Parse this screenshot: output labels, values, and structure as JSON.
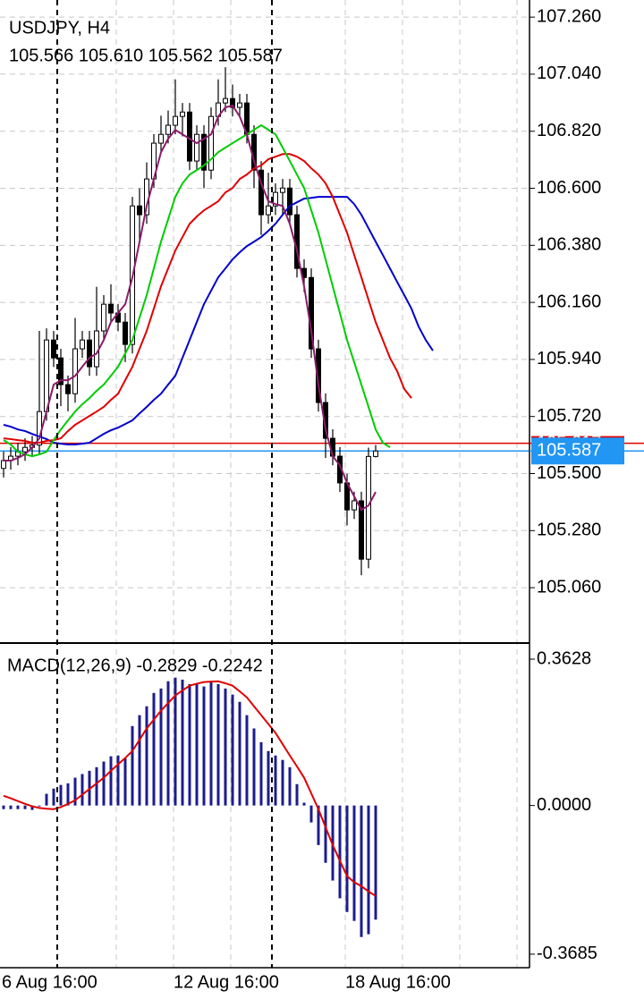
{
  "chart_data": [
    {
      "type": "candlestick",
      "title": "USDJPY, H4",
      "subtitle": "105.566 105.610 105.562 105.587",
      "categories": [
        "6 Aug 16:00",
        null,
        null,
        null,
        null,
        null,
        null,
        null,
        null,
        null,
        null,
        null,
        null,
        null,
        null,
        null,
        null,
        null,
        null,
        null,
        null,
        null,
        null,
        null,
        "12 Aug 16:00",
        null,
        null,
        null,
        null,
        null,
        null,
        null,
        null,
        null,
        null,
        null,
        null,
        null,
        null,
        null,
        null,
        null,
        null,
        null,
        null,
        null,
        null,
        null,
        "18 Aug 16:00",
        null,
        null,
        null,
        null,
        null,
        null,
        null,
        null,
        null,
        null,
        null,
        null
      ],
      "open": [
        105.52,
        105.55,
        105.567,
        105.584,
        105.601,
        105.61,
        105.739,
        106.015,
        105.946,
        105.843,
        105.808,
        105.981,
        106.015,
        105.912,
        106.05,
        106.153,
        106.119,
        106.084,
        105.998,
        106.532,
        106.498,
        106.636,
        106.774,
        106.808,
        106.843,
        106.877,
        106.894,
        106.705,
        106.808,
        106.67,
        106.877,
        106.929,
        106.946,
        106.912,
        106.929,
        106.808,
        106.67,
        106.498,
        106.532,
        106.584,
        106.601,
        106.498,
        106.291,
        106.256,
        105.981,
        105.774,
        105.636,
        105.567,
        105.464,
        105.36,
        105.395,
        105.17,
        105.566,
        null,
        null,
        null,
        null,
        null,
        null,
        null,
        null
      ],
      "high": [
        105.585,
        105.602,
        105.619,
        105.636,
        105.645,
        106.05,
        106.06,
        106.05,
        105.981,
        105.878,
        106.1,
        106.05,
        106.05,
        106.22,
        106.188,
        106.23,
        106.154,
        106.119,
        106.567,
        106.6,
        106.7,
        106.809,
        106.88,
        106.9,
        107.02,
        106.929,
        106.929,
        106.843,
        106.843,
        106.912,
        107.02,
        107.067,
        107.0,
        106.964,
        106.964,
        106.843,
        106.705,
        106.66,
        106.619,
        106.636,
        106.636,
        106.533,
        106.326,
        106.291,
        106.016,
        105.809,
        105.671,
        105.602,
        105.499,
        105.43,
        105.43,
        105.6,
        105.61,
        null,
        null,
        null,
        null,
        null,
        null,
        null,
        null
      ],
      "low": [
        105.485,
        105.515,
        105.532,
        105.549,
        105.566,
        105.575,
        105.704,
        105.911,
        105.76,
        105.74,
        105.773,
        105.946,
        105.877,
        105.877,
        106.015,
        106.084,
        106.049,
        105.93,
        105.963,
        106.4,
        106.463,
        106.601,
        106.739,
        106.773,
        106.808,
        106.8,
        106.67,
        106.67,
        106.6,
        106.635,
        106.842,
        106.894,
        106.877,
        106.877,
        106.773,
        106.6,
        106.42,
        106.463,
        106.497,
        106.5,
        106.463,
        106.256,
        106.2,
        105.946,
        105.739,
        105.56,
        105.532,
        105.429,
        105.3,
        105.325,
        105.108,
        105.135,
        105.562,
        null,
        null,
        null,
        null,
        null,
        null,
        null,
        null
      ],
      "close": [
        105.55,
        105.567,
        105.584,
        105.601,
        105.61,
        105.739,
        106.015,
        105.946,
        105.843,
        105.808,
        105.981,
        106.015,
        105.912,
        106.05,
        106.153,
        106.119,
        106.084,
        105.998,
        106.532,
        106.498,
        106.636,
        106.774,
        106.808,
        106.843,
        106.877,
        106.894,
        106.705,
        106.808,
        106.67,
        106.877,
        106.929,
        106.946,
        106.912,
        106.929,
        106.808,
        106.67,
        106.498,
        106.532,
        106.584,
        106.601,
        106.498,
        106.291,
        106.256,
        105.981,
        105.774,
        105.636,
        105.567,
        105.464,
        105.36,
        105.395,
        105.17,
        105.566,
        105.587,
        null,
        null,
        null,
        null,
        null,
        null,
        null,
        null
      ],
      "candle_colors": {
        "up": "#ffffff",
        "down": "#000000",
        "outline": "#000000"
      },
      "series": [
        {
          "color": "#0000cc",
          "values": [
            105.688,
            105.681,
            105.67,
            105.664,
            105.653,
            105.643,
            105.633,
            105.619,
            105.615,
            105.612,
            105.612,
            105.615,
            105.619,
            105.636,
            105.653,
            105.667,
            105.677,
            105.691,
            105.705,
            105.732,
            105.757,
            105.784,
            105.808,
            105.843,
            105.877,
            105.946,
            106.015,
            106.084,
            106.153,
            106.205,
            106.257,
            106.291,
            106.326,
            106.353,
            106.377,
            106.394,
            106.412,
            106.436,
            106.463,
            106.498,
            106.532,
            106.546,
            106.56,
            106.563,
            106.567,
            106.567,
            106.567,
            106.567,
            106.567,
            106.539,
            106.498,
            106.446,
            106.394,
            106.343,
            106.291,
            106.239,
            106.188,
            106.136,
            106.067,
            106.015,
            105.974
          ]
        },
        {
          "color": "#e00000",
          "values": [
            105.636,
            105.633,
            105.629,
            105.626,
            105.619,
            105.619,
            105.626,
            105.629,
            105.636,
            105.664,
            105.688,
            105.705,
            105.722,
            105.739,
            105.757,
            105.784,
            105.808,
            105.86,
            105.912,
            105.981,
            106.05,
            106.136,
            106.222,
            106.291,
            106.36,
            106.412,
            106.463,
            106.491,
            106.515,
            106.532,
            106.55,
            106.584,
            106.601,
            106.636,
            106.653,
            106.677,
            106.688,
            106.712,
            106.722,
            106.732,
            106.732,
            106.722,
            106.705,
            106.677,
            106.653,
            106.619,
            106.567,
            106.498,
            106.429,
            106.343,
            106.257,
            106.17,
            106.084,
            106.015,
            105.946,
            105.895,
            105.826,
            105.791,
            null,
            null,
            null
          ]
        },
        {
          "color": "#00cc00",
          "values": [
            105.629,
            105.612,
            105.584,
            105.574,
            105.567,
            105.574,
            105.584,
            105.629,
            105.67,
            105.705,
            105.739,
            105.767,
            105.791,
            105.819,
            105.843,
            105.877,
            105.912,
            105.963,
            106.015,
            106.101,
            106.188,
            106.291,
            106.394,
            106.481,
            106.567,
            106.619,
            106.653,
            106.67,
            106.688,
            106.712,
            106.739,
            106.757,
            106.774,
            106.791,
            106.808,
            106.826,
            106.843,
            106.826,
            106.808,
            106.757,
            106.705,
            106.653,
            106.601,
            106.515,
            106.429,
            106.326,
            106.222,
            106.119,
            106.015,
            105.929,
            105.843,
            105.757,
            105.67,
            105.619,
            105.601,
            null,
            null,
            null,
            null,
            null,
            null
          ]
        },
        {
          "color": "#8b1a6b",
          "values": [
            105.55,
            105.55,
            105.56,
            105.575,
            105.601,
            105.636,
            105.739,
            105.843,
            105.86,
            105.86,
            105.877,
            105.912,
            105.946,
            105.963,
            106.015,
            106.084,
            106.119,
            106.153,
            106.256,
            106.394,
            106.532,
            106.636,
            106.739,
            106.791,
            106.825,
            106.808,
            106.791,
            106.774,
            106.791,
            106.808,
            106.877,
            106.912,
            106.919,
            106.877,
            106.808,
            106.705,
            106.619,
            106.55,
            106.539,
            106.532,
            106.463,
            106.36,
            106.222,
            106.05,
            105.843,
            105.67,
            105.567,
            105.532,
            105.464,
            105.412,
            105.36,
            105.377,
            105.429,
            null,
            null,
            null,
            null,
            null,
            null,
            null,
            null
          ]
        }
      ],
      "price_lines": [
        {
          "value": 105.617,
          "color": "#e00000"
        },
        {
          "value": 105.587,
          "color": "#2196f3"
        }
      ],
      "ylim": [
        104.85,
        107.326
      ],
      "yticks": [
        {
          "value": 107.26,
          "label": "107.260"
        },
        {
          "value": 107.04,
          "label": "107.040"
        },
        {
          "value": 106.82,
          "label": "106.820"
        },
        {
          "value": 106.6,
          "label": "106.600"
        },
        {
          "value": 106.38,
          "label": "106.380"
        },
        {
          "value": 106.16,
          "label": "106.160"
        },
        {
          "value": 105.94,
          "label": "105.940"
        },
        {
          "value": 105.72,
          "label": "105.720"
        },
        {
          "value": 105.5,
          "label": "105.500"
        },
        {
          "value": 105.28,
          "label": "105.280"
        },
        {
          "value": 105.06,
          "label": "105.060"
        }
      ],
      "grid": true
    },
    {
      "type": "macd",
      "title": "MACD(12,26,9) -0.2829 -0.2242",
      "series": [
        {
          "type": "bar",
          "color": "#1c1c8f",
          "values": [
            -0.009,
            -0.009,
            -0.009,
            -0.009,
            -0.011,
            -0.002,
            0.029,
            0.042,
            0.051,
            0.055,
            0.069,
            0.078,
            0.086,
            0.095,
            0.109,
            0.122,
            0.124,
            0.117,
            0.197,
            0.224,
            0.246,
            0.279,
            0.29,
            0.308,
            0.317,
            0.312,
            0.301,
            0.301,
            0.295,
            0.308,
            0.301,
            0.29,
            0.275,
            0.257,
            0.224,
            0.191,
            0.157,
            0.135,
            0.124,
            0.113,
            0.095,
            0.053,
            0.007,
            -0.042,
            -0.098,
            -0.142,
            -0.186,
            -0.23,
            -0.264,
            -0.286,
            -0.326,
            -0.319,
            -0.2829
          ]
        },
        {
          "type": "line",
          "color": "#e00000",
          "values": [
            0.024,
            0.018,
            0.011,
            0.004,
            -0.002,
            -0.006,
            -0.008,
            -0.009,
            -0.004,
            0.004,
            0.013,
            0.027,
            0.041,
            0.055,
            0.069,
            0.086,
            0.102,
            0.118,
            0.135,
            0.163,
            0.191,
            0.213,
            0.235,
            0.254,
            0.273,
            0.285,
            0.297,
            0.302,
            0.306,
            0.307,
            0.308,
            0.303,
            0.297,
            0.283,
            0.268,
            0.246,
            0.224,
            0.202,
            0.18,
            0.152,
            0.124,
            0.097,
            0.069,
            0.03,
            -0.009,
            -0.054,
            -0.098,
            -0.137,
            -0.175,
            -0.19,
            -0.2,
            -0.213,
            -0.2242
          ]
        }
      ],
      "ylim": [
        -0.402,
        0.4005
      ],
      "yticks": [
        0.3628,
        {
          "value": 0,
          "label": "0.0000"
        },
        -0.3685
      ]
    }
  ]
}
